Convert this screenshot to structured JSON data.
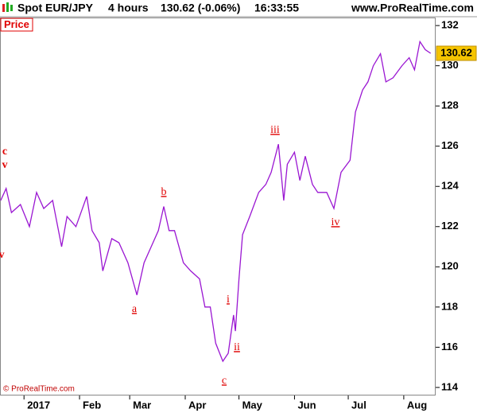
{
  "header": {
    "symbol": "Spot EUR/JPY",
    "timeframe": "4 hours",
    "last": "130.62 (-0.06%)",
    "time": "16:33:55",
    "site": "www.ProRealTime.com"
  },
  "panel_label": "Price",
  "copyright": "© ProRealTime.com",
  "chart_data": {
    "type": "line",
    "color": "#9a16d2",
    "x": [
      -12,
      -9,
      -6,
      -1,
      4,
      8,
      12,
      17,
      22,
      25,
      30,
      36,
      39,
      43,
      45,
      50,
      54,
      59,
      64,
      68,
      72,
      76,
      79,
      82,
      85,
      90,
      94,
      99,
      102,
      105,
      108,
      112,
      115,
      118,
      119,
      121,
      123,
      127,
      132,
      136,
      139,
      143,
      146,
      148,
      152,
      155,
      158,
      162,
      165,
      170,
      174,
      178,
      183,
      186,
      190,
      193,
      196,
      200,
      203,
      207,
      212,
      216,
      219,
      222,
      225,
      228
    ],
    "values": [
      123.3,
      123.9,
      122.7,
      123.1,
      122.0,
      123.7,
      122.9,
      123.3,
      121.0,
      122.5,
      122.0,
      123.5,
      121.8,
      121.2,
      119.8,
      121.4,
      121.2,
      120.2,
      118.6,
      120.2,
      121.0,
      121.8,
      123.0,
      121.8,
      121.8,
      120.2,
      119.8,
      119.4,
      118.0,
      118.0,
      116.2,
      115.3,
      115.7,
      117.6,
      116.8,
      119.4,
      121.6,
      122.5,
      123.7,
      124.1,
      124.7,
      126.1,
      123.3,
      125.1,
      125.7,
      124.3,
      125.5,
      124.1,
      123.7,
      123.7,
      122.9,
      124.7,
      125.3,
      127.7,
      128.8,
      129.2,
      130.0,
      130.6,
      129.2,
      129.4,
      130.0,
      130.4,
      129.8,
      131.2,
      130.8,
      130.62
    ],
    "last_value": 130.62,
    "xlim": [
      -12.4,
      230.8
    ],
    "xticks": [
      {
        "value": 1,
        "label": "2017"
      },
      {
        "value": 32,
        "label": "Feb"
      },
      {
        "value": 60,
        "label": "Mar"
      },
      {
        "value": 91,
        "label": "Apr"
      },
      {
        "value": 121,
        "label": "May"
      },
      {
        "value": 152,
        "label": "Jun"
      },
      {
        "value": 182,
        "label": "Jul"
      },
      {
        "value": 213,
        "label": "Aug"
      }
    ],
    "ylim": [
      113.6,
      132.4
    ],
    "yticks": [
      114,
      116,
      118,
      120,
      122,
      124,
      126,
      128,
      130,
      132
    ],
    "annotations": [
      "c",
      "v",
      "v",
      "a",
      "b",
      "i",
      "ii",
      "iii",
      "iv",
      "c"
    ]
  }
}
